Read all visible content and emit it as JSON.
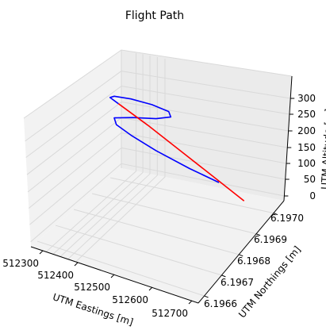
{
  "chart_data": {
    "type": "line3d",
    "title": "Flight Path",
    "xlabel": "UTM Eastings [m]",
    "ylabel": "UTM Northings [m]",
    "zlabel": "UTM Altitude [m]",
    "x_ticks": [
      "512300",
      "512400",
      "512500",
      "512600",
      "512700"
    ],
    "y_ticks": [
      "6.1966",
      "6.1967",
      "6.1968",
      "6.1969",
      "6.1970"
    ],
    "z_ticks": [
      "0",
      "50",
      "100",
      "150",
      "200",
      "250",
      "300"
    ],
    "grid": true,
    "series": [
      {
        "color": "#0000ff",
        "points": [
          [
            512590,
            6.19668,
            50
          ],
          [
            512520,
            6.19668,
            62
          ],
          [
            512440,
            6.19669,
            82
          ],
          [
            512380,
            6.1967,
            103
          ],
          [
            512345,
            6.19671,
            120
          ],
          [
            512340,
            6.19673,
            138
          ],
          [
            512385,
            6.19675,
            158
          ],
          [
            512440,
            6.19677,
            178
          ],
          [
            512475,
            6.1968,
            198
          ],
          [
            512470,
            6.19683,
            212
          ],
          [
            512430,
            6.19684,
            216
          ],
          [
            512380,
            6.19683,
            212
          ],
          [
            512340,
            6.19681,
            203
          ],
          [
            512330,
            6.19679,
            195
          ],
          [
            512350,
            6.19677,
            185
          ]
        ]
      },
      {
        "color": "#ff0000",
        "points": [
          [
            512350,
            6.19677,
            185
          ],
          [
            512420,
            6.19674,
            150
          ],
          [
            512500,
            6.1967,
            105
          ],
          [
            512580,
            6.19666,
            60
          ],
          [
            512650,
            6.19662,
            20
          ]
        ]
      }
    ]
  }
}
